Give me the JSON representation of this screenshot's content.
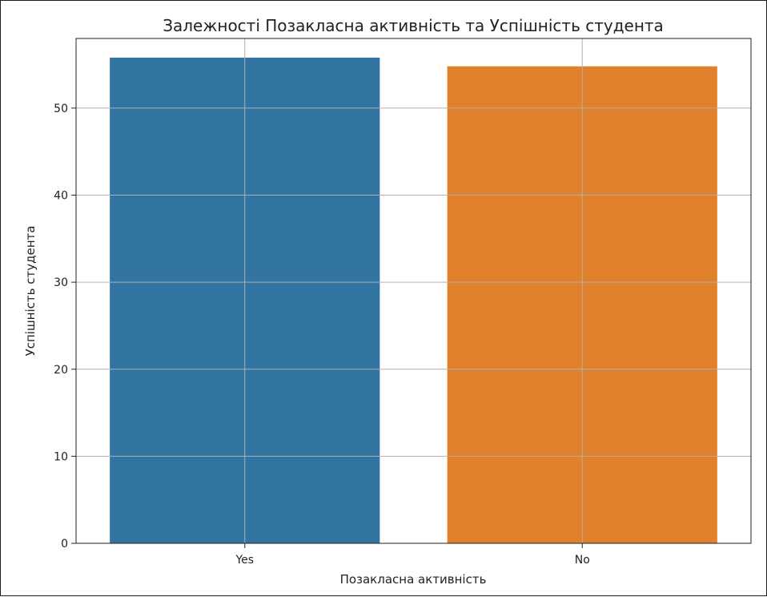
{
  "chart_data": {
    "type": "bar",
    "title": "Залежності Позакласна активність та Успішність студента",
    "xlabel": "Позакласна активність",
    "ylabel": "Успішність студента",
    "categories": [
      "Yes",
      "No"
    ],
    "values": [
      55.8,
      54.8
    ],
    "colors": [
      "#3274a1",
      "#e1812c"
    ],
    "ylim": [
      0,
      58
    ],
    "yticks": [
      0,
      10,
      20,
      30,
      40,
      50
    ],
    "grid": true
  }
}
